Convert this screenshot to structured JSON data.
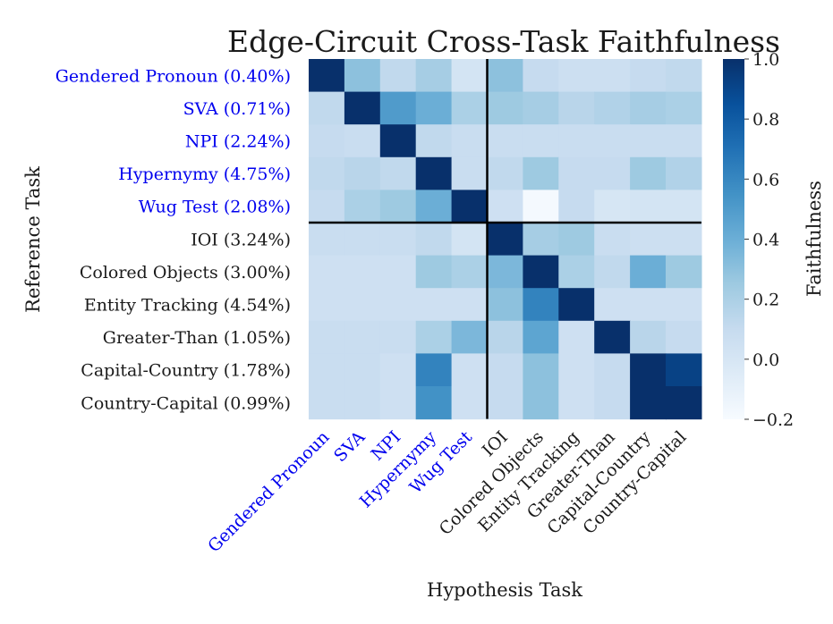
{
  "chart_data": {
    "type": "heatmap",
    "title": "Edge-Circuit Cross-Task Faithfulness",
    "xlabel": "Hypothesis Task",
    "ylabel": "Reference Task",
    "colorbar_label": "Faithfulness",
    "colorbar_ticks": [
      "1.0",
      "0.8",
      "0.6",
      "0.4",
      "0.2",
      "0.0",
      "−0.2"
    ],
    "colorbar_range": [
      -0.2,
      1.0
    ],
    "x_labels": [
      "Gendered Pronoun",
      "SVA",
      "NPI",
      "Hypernymy",
      "Wug Test",
      "IOI",
      "Colored Objects",
      "Entity Tracking",
      "Greater-Than",
      "Capital-Country",
      "Country-Capital"
    ],
    "y_labels": [
      "Gendered Pronoun (0.40%)",
      "SVA (0.71%)",
      "NPI (2.24%)",
      "Hypernymy (4.75%)",
      "Wug Test (2.08%)",
      "IOI (3.24%)",
      "Colored Objects (3.00%)",
      "Entity Tracking (4.54%)",
      "Greater-Than (1.05%)",
      "Capital-Country (1.78%)",
      "Country-Capital (0.99%)"
    ],
    "highlight_color": "#0000ee",
    "highlighted_count": 5,
    "values": [
      [
        1.0,
        0.3,
        0.12,
        0.22,
        0.02,
        0.3,
        0.1,
        0.06,
        0.06,
        0.1,
        0.12
      ],
      [
        0.12,
        1.0,
        0.5,
        0.4,
        0.2,
        0.25,
        0.22,
        0.15,
        0.18,
        0.22,
        0.2
      ],
      [
        0.1,
        0.08,
        1.0,
        0.12,
        0.08,
        0.08,
        0.08,
        0.08,
        0.08,
        0.08,
        0.08
      ],
      [
        0.12,
        0.15,
        0.12,
        1.0,
        0.08,
        0.12,
        0.25,
        0.1,
        0.1,
        0.25,
        0.18
      ],
      [
        0.1,
        0.2,
        0.25,
        0.4,
        1.0,
        0.05,
        -0.18,
        0.1,
        0.0,
        0.02,
        0.02
      ],
      [
        0.08,
        0.08,
        0.08,
        0.12,
        0.02,
        1.0,
        0.22,
        0.25,
        0.08,
        0.06,
        0.06
      ],
      [
        0.05,
        0.05,
        0.05,
        0.25,
        0.2,
        0.35,
        1.0,
        0.2,
        0.12,
        0.4,
        0.25
      ],
      [
        0.05,
        0.05,
        0.05,
        0.05,
        0.05,
        0.3,
        0.62,
        1.0,
        0.05,
        0.05,
        0.05
      ],
      [
        0.08,
        0.08,
        0.08,
        0.2,
        0.35,
        0.15,
        0.45,
        0.05,
        1.0,
        0.15,
        0.1
      ],
      [
        0.08,
        0.08,
        0.05,
        0.62,
        0.05,
        0.1,
        0.3,
        0.05,
        0.1,
        1.0,
        0.92
      ],
      [
        0.08,
        0.08,
        0.05,
        0.55,
        0.05,
        0.1,
        0.3,
        0.05,
        0.1,
        1.0,
        1.0
      ]
    ],
    "colors": {
      "text": "#1a1a1a",
      "divider": "#000000"
    }
  }
}
